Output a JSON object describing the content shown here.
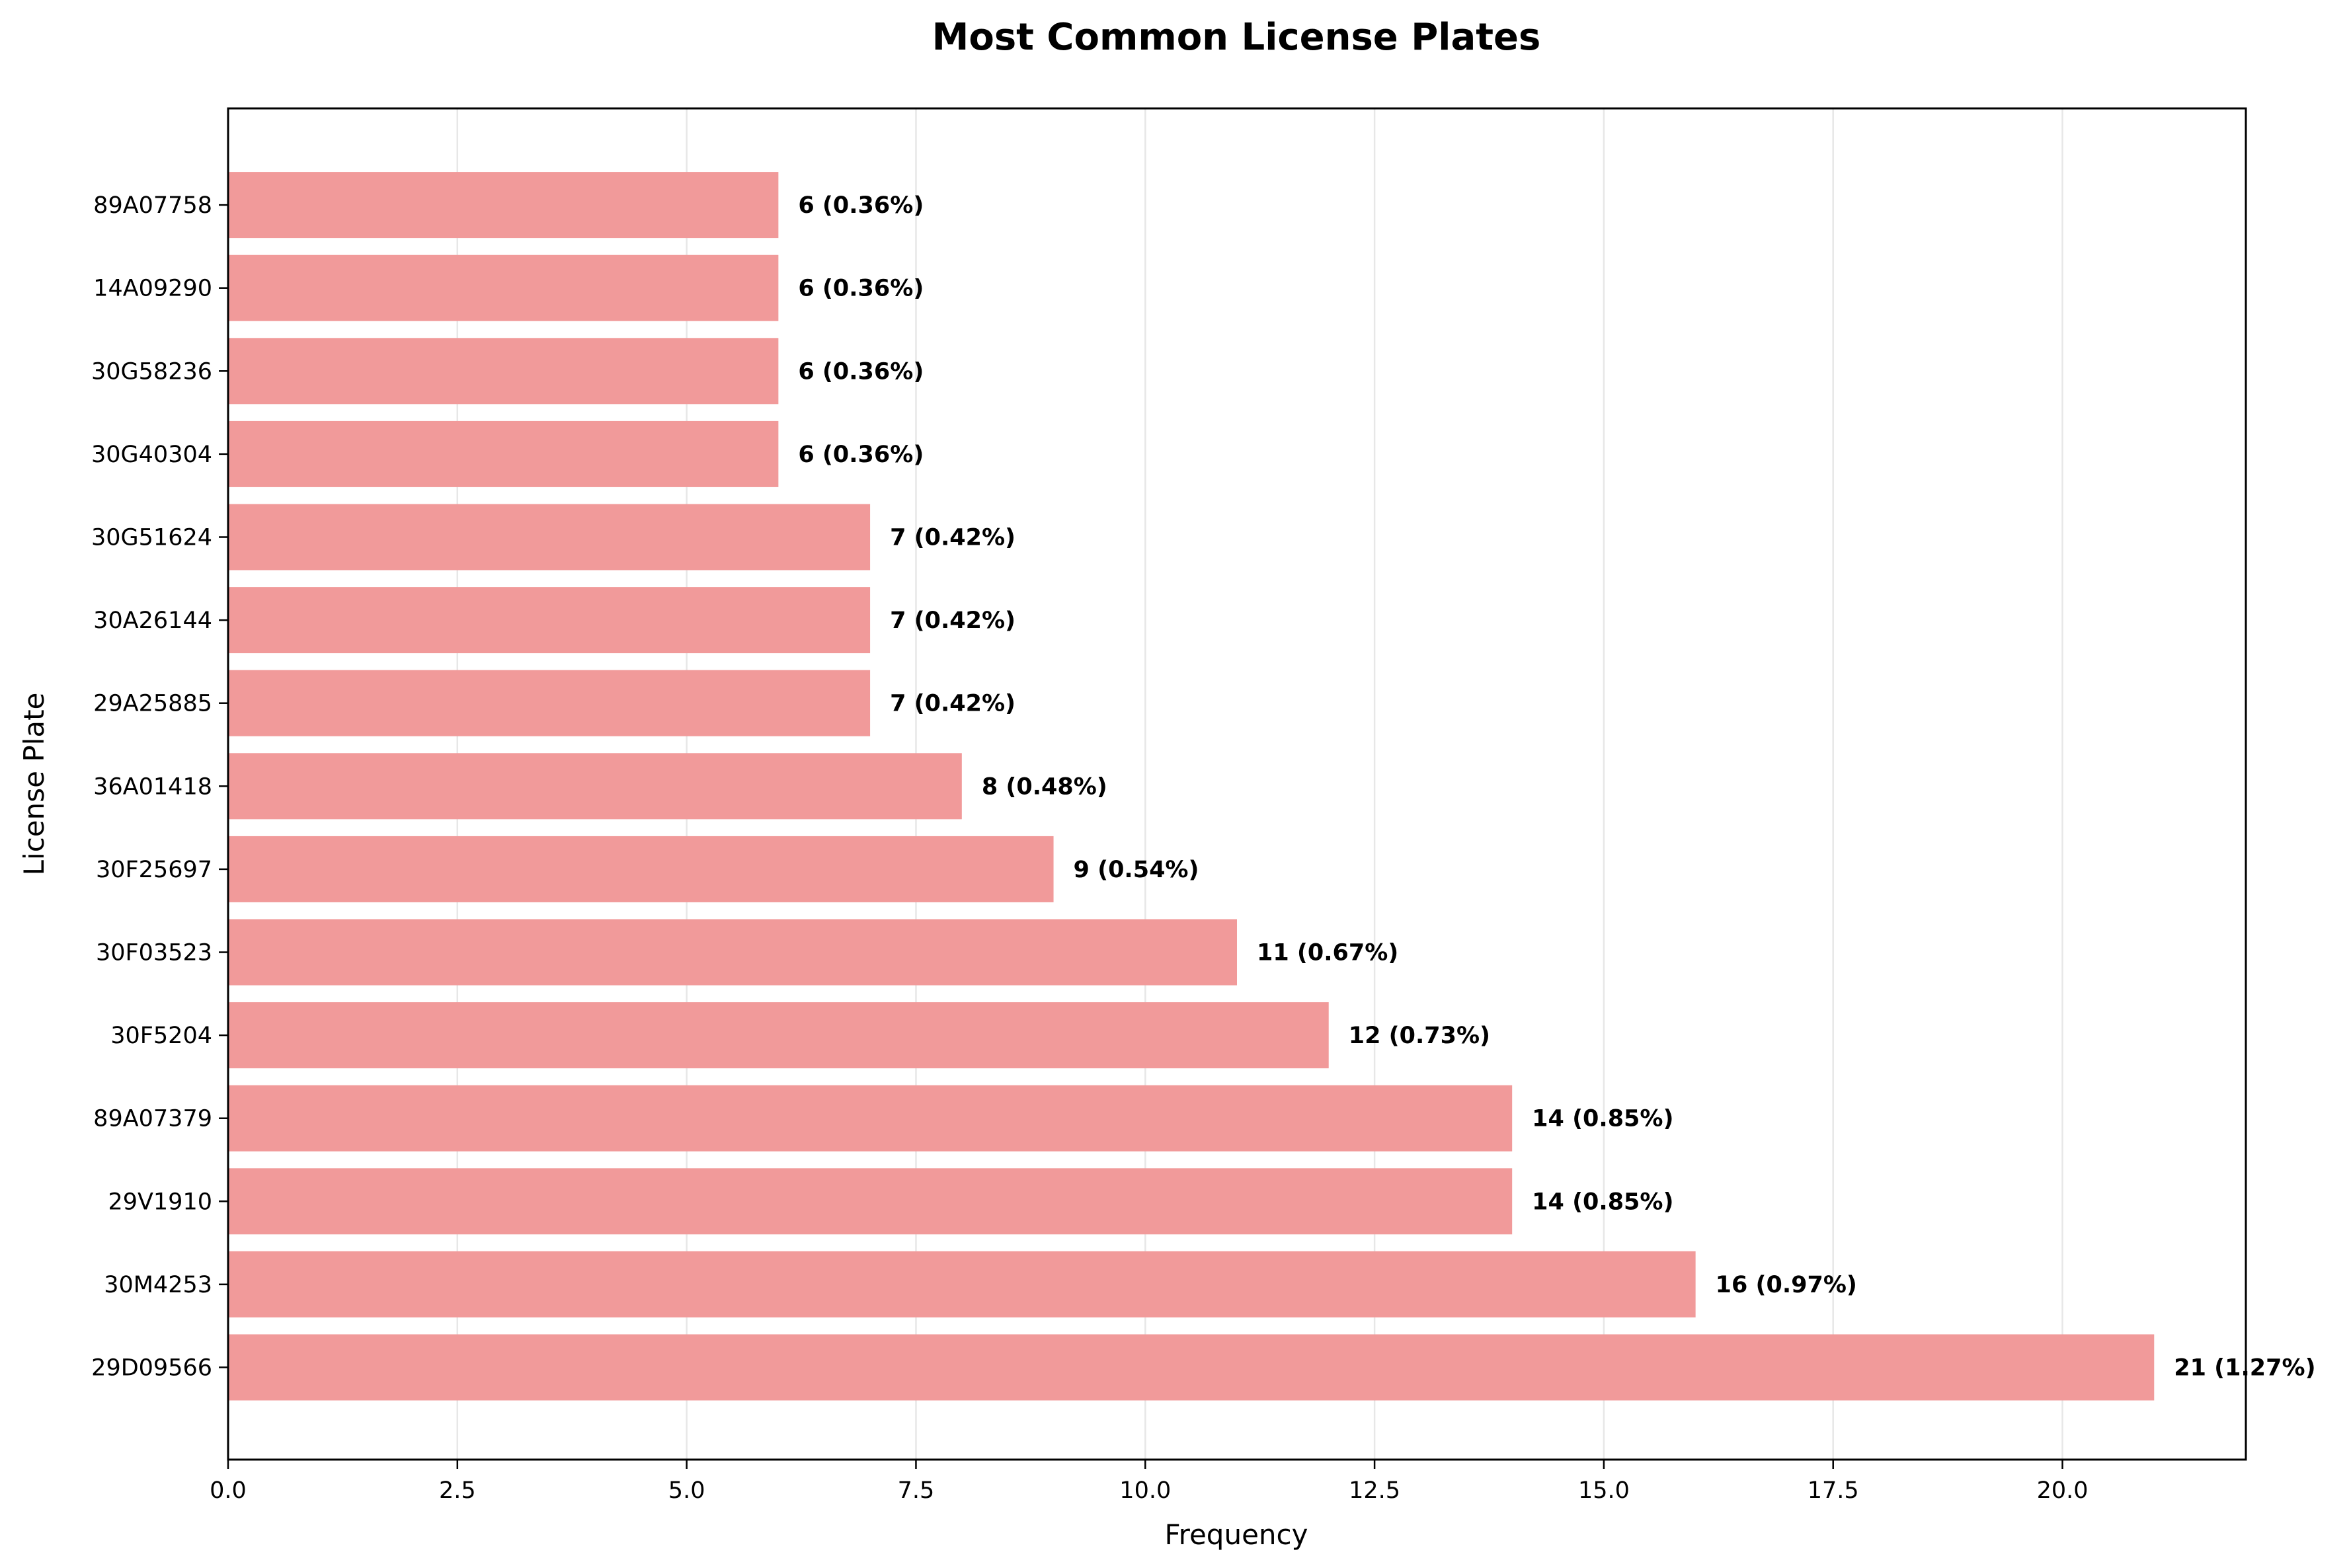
{
  "chart_data": {
    "type": "bar",
    "orientation": "horizontal",
    "title": "Most Common License Plates",
    "xlabel": "Frequency",
    "ylabel": "License Plate",
    "xlim": [
      0,
      22
    ],
    "xticks": [
      0.0,
      2.5,
      5.0,
      7.5,
      10.0,
      12.5,
      15.0,
      17.5,
      20.0
    ],
    "xtick_labels": [
      "0.0",
      "2.5",
      "5.0",
      "7.5",
      "10.0",
      "12.5",
      "15.0",
      "17.5",
      "20.0"
    ],
    "grid": "x",
    "bar_color": "#f19a9a",
    "categories": [
      "29D09566",
      "30M4253",
      "29V1910",
      "89A07379",
      "30F5204",
      "30F03523",
      "30F25697",
      "36A01418",
      "29A25885",
      "30A26144",
      "30G51624",
      "30G40304",
      "30G58236",
      "14A09290",
      "89A07758"
    ],
    "values": [
      21,
      16,
      14,
      14,
      12,
      11,
      9,
      8,
      7,
      7,
      7,
      6,
      6,
      6,
      6
    ],
    "data_labels": [
      "21 (1.27%)",
      "16 (0.97%)",
      "14 (0.85%)",
      "14 (0.85%)",
      "12 (0.73%)",
      "11 (0.67%)",
      "9 (0.54%)",
      "8 (0.48%)",
      "7 (0.42%)",
      "7 (0.42%)",
      "7 (0.42%)",
      "6 (0.36%)",
      "6 (0.36%)",
      "6 (0.36%)",
      "6 (0.36%)"
    ]
  }
}
